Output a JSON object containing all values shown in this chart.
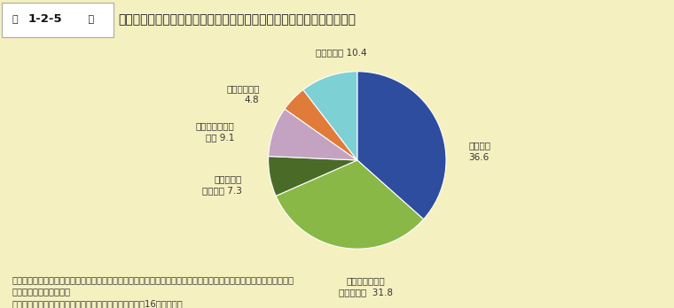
{
  "title_label_prefix": "第 ",
  "title_label_num": "1-2-5",
  "title_label_suffix": " 図",
  "title": "科学的研究は、人類に新たな知識をもたらすという意味で不可欠である",
  "slices": [
    {
      "label": "そう思う\n36.6",
      "value": 36.6,
      "color": "#2e4d9e"
    },
    {
      "label": "どちらかという\nとそう思う  31.8",
      "value": 31.8,
      "color": "#8ab846"
    },
    {
      "label": "どちらとも\nいえない 7.3",
      "value": 7.3,
      "color": "#4a6b28"
    },
    {
      "label": "あまりそう思わ\nない 9.1",
      "value": 9.1,
      "color": "#c4a2c2"
    },
    {
      "label": "そう思わない\n4.8",
      "value": 4.8,
      "color": "#e07b3a"
    },
    {
      "label": "わからない 10.4",
      "value": 10.4,
      "color": "#7dd0d4"
    }
  ],
  "note_line1": "注）「科学的研究は、人類に新たな知識をもたらすという意味で不可欠である」と言う意見についてどう思うかという",
  "note_line2": "　　問いに対する回答。",
  "note_line3": "資料：内閣府「科学技術と社会に関する世論調査（平成16年２月）」",
  "bg_color": "#f5f0c0",
  "header_bg": "#a0c840",
  "label_coords": [
    [
      1.25,
      0.1,
      "left",
      "そう思う\n36.6"
    ],
    [
      0.1,
      -1.42,
      "center",
      "どちらかという\nとそう思う  31.8"
    ],
    [
      -1.3,
      -0.28,
      "right",
      "どちらとも\nいえない 7.3"
    ],
    [
      -1.38,
      0.32,
      "right",
      "あまりそう思わ\nない 9.1"
    ],
    [
      -1.1,
      0.74,
      "right",
      "そう思わない\n4.8"
    ],
    [
      -0.18,
      1.22,
      "center",
      "わからない 10.4"
    ]
  ]
}
